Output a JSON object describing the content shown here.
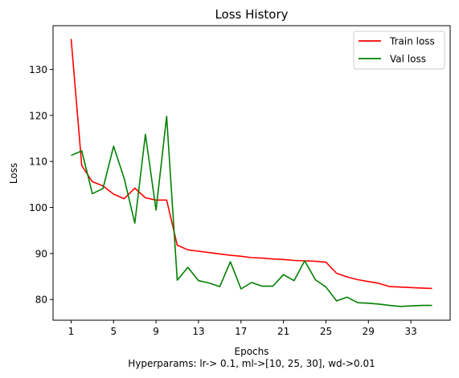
{
  "chart_data": {
    "type": "line",
    "title": "Loss History",
    "xlabel": "Epochs",
    "xlabel_note": "Hyperparams: lr-> 0.1, ml->[10, 25, 30], wd->0.01",
    "ylabel": "Loss",
    "x": [
      1,
      2,
      3,
      4,
      5,
      6,
      7,
      8,
      9,
      10,
      11,
      12,
      13,
      14,
      15,
      16,
      17,
      18,
      19,
      20,
      21,
      22,
      23,
      24,
      25,
      26,
      27,
      28,
      29,
      30,
      31,
      32,
      33,
      34,
      35
    ],
    "x_ticks": [
      1,
      5,
      9,
      13,
      17,
      21,
      25,
      29,
      33
    ],
    "y_ticks": [
      80,
      90,
      100,
      110,
      120,
      130
    ],
    "xlim": [
      -0.7,
      36.7
    ],
    "ylim": [
      75.5,
      139.5
    ],
    "grid": false,
    "legend_position": "top-right",
    "series": [
      {
        "name": "Train loss",
        "color": "#ff0000",
        "values": [
          136.6,
          109.1,
          105.6,
          104.7,
          102.9,
          101.9,
          104.2,
          102.1,
          101.6,
          101.6,
          91.8,
          90.8,
          90.5,
          90.2,
          89.9,
          89.6,
          89.4,
          89.1,
          89.0,
          88.8,
          88.7,
          88.5,
          88.4,
          88.3,
          88.1,
          85.7,
          84.9,
          84.3,
          83.9,
          83.5,
          82.8,
          82.7,
          82.6,
          82.5,
          82.4
        ]
      },
      {
        "name": "Val loss",
        "color": "#008000",
        "values": [
          111.3,
          112.3,
          103.0,
          104.1,
          113.3,
          106.3,
          96.6,
          115.9,
          99.4,
          119.8,
          84.2,
          87.0,
          84.1,
          83.6,
          82.8,
          88.2,
          82.3,
          83.7,
          82.9,
          82.9,
          85.4,
          84.1,
          88.4,
          84.3,
          82.7,
          79.7,
          80.5,
          79.3,
          79.2,
          79.0,
          78.7,
          78.5,
          78.6,
          78.7,
          78.7
        ]
      }
    ]
  }
}
